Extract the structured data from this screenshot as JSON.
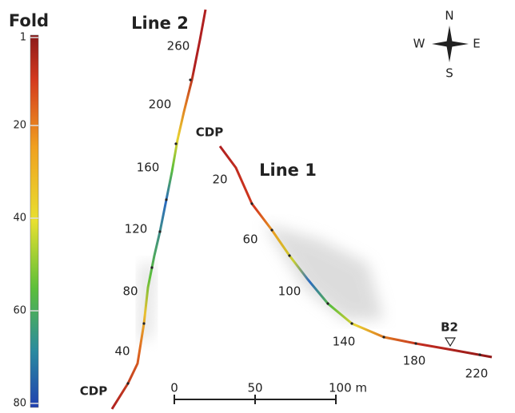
{
  "colorbar": {
    "title": "Fold",
    "ticks": [
      1,
      20,
      40,
      60,
      80
    ]
  },
  "line2": {
    "name": "Line 2",
    "start": "CDP",
    "labels": [
      40,
      80,
      120,
      160,
      200,
      260
    ]
  },
  "line1": {
    "name": "Line 1",
    "start": "CDP",
    "labels": [
      20,
      60,
      100,
      140,
      180,
      220
    ],
    "marker": "B2"
  },
  "compass": {
    "n": "N",
    "e": "E",
    "s": "S",
    "w": "W"
  },
  "scale": {
    "labels": [
      0,
      50,
      "100 m"
    ]
  }
}
